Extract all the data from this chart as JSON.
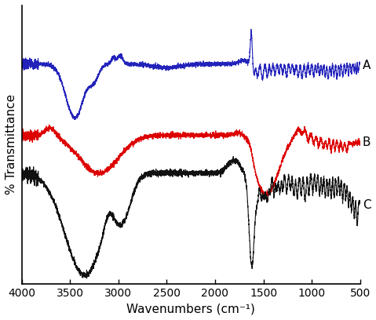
{
  "xlabel": "Wavenumbers (cm⁻¹)",
  "ylabel": "% Transmittance",
  "xlim": [
    4000,
    500
  ],
  "colors": {
    "A": "#2222bb",
    "B": "#dd0000",
    "C": "#111111"
  },
  "labels": {
    "A": "A",
    "B": "B",
    "C": "C"
  },
  "xticks": [
    4000,
    3500,
    3000,
    2500,
    2000,
    1500,
    1000,
    500
  ],
  "background_color": "#ffffff",
  "label_fontsize": 11,
  "tick_fontsize": 10
}
